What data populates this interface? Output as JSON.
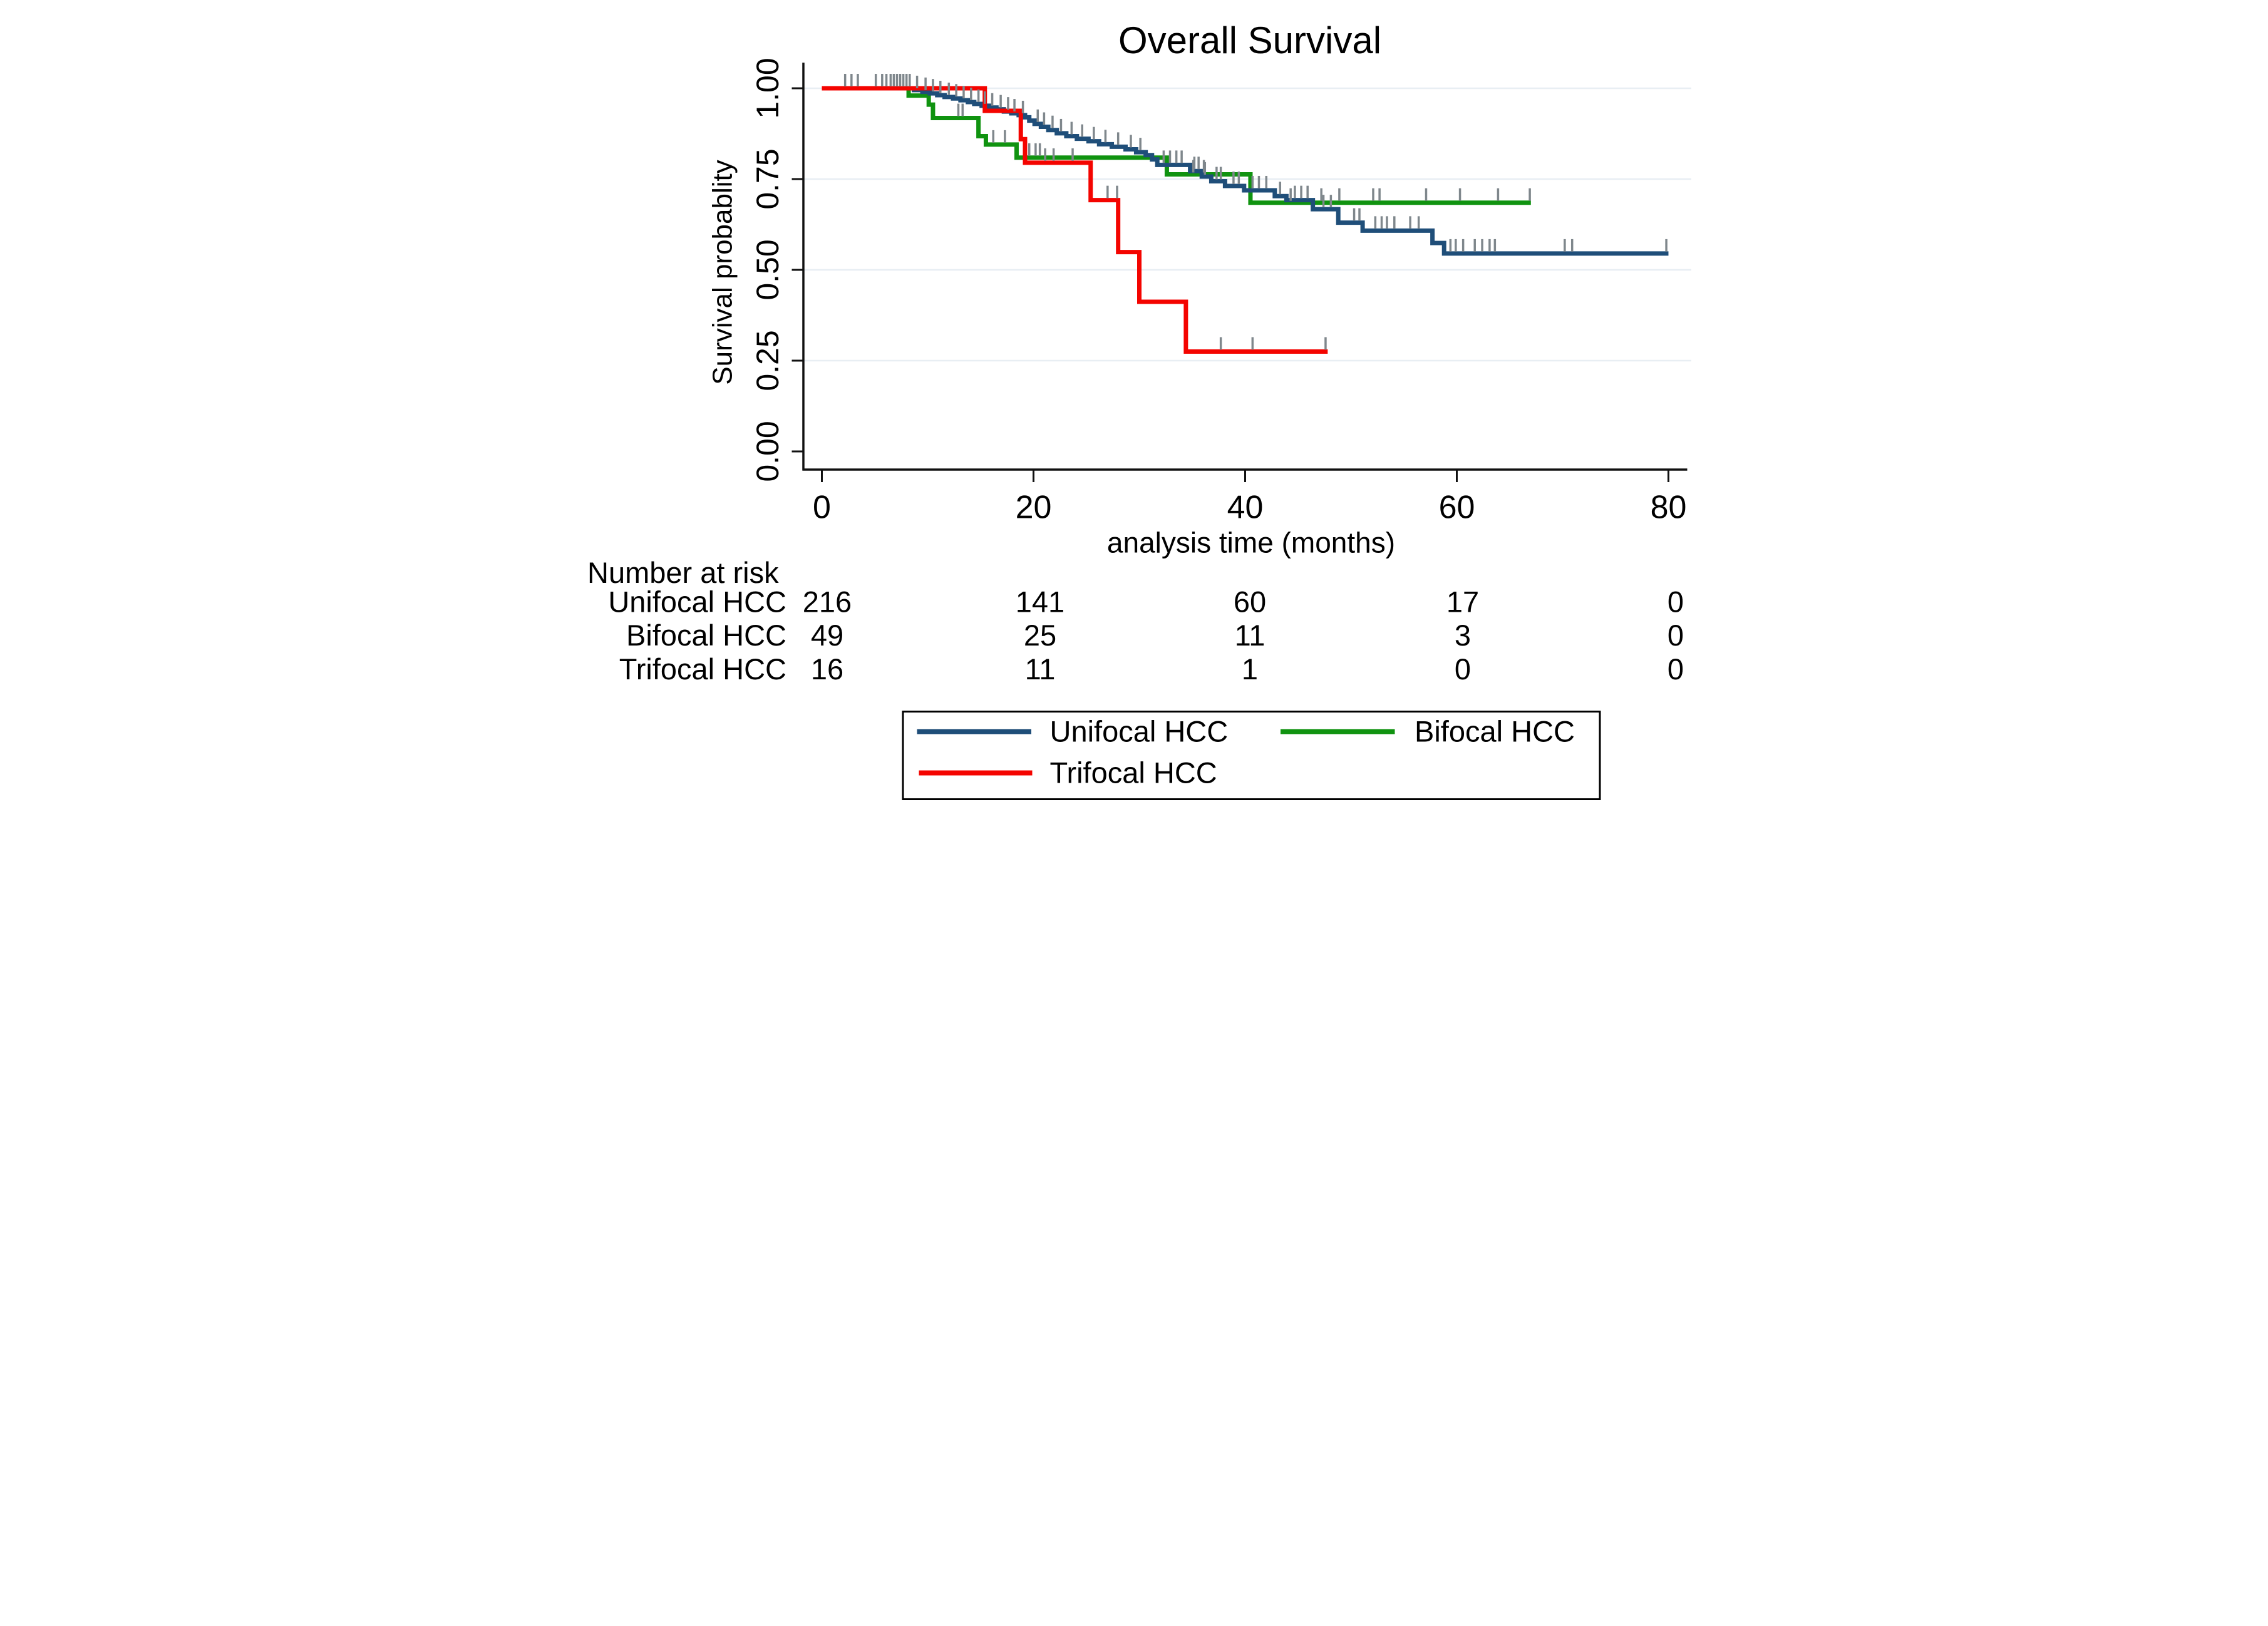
{
  "title": "Overall Survival",
  "title_color": "#243a6b",
  "colors": {
    "unifocal": "#1f4e79",
    "bifocal": "#109310",
    "trifocal": "#f40400",
    "censor": "#7f878c",
    "grid": "#e8eef3",
    "axis": "#111111",
    "text": "#000000",
    "legend_border": "#000000",
    "background": "#ffffff"
  },
  "chart_data": {
    "type": "line",
    "subtype": "kaplan-meier-step",
    "title": "Overall Survival",
    "xlabel": "analysis time (months)",
    "ylabel": "Survival probablity",
    "xlim": [
      0,
      80
    ],
    "ylim": [
      0,
      1
    ],
    "x_ticks": [
      0,
      20,
      40,
      60,
      80
    ],
    "y_ticks": [
      0,
      0.25,
      0.5,
      0.75,
      1
    ],
    "grid": true,
    "legend_position": "bottom",
    "series": [
      {
        "name": "Unifocal HCC",
        "color_key": "unifocal",
        "end_month": 80,
        "steps": [
          [
            0,
            1
          ],
          [
            8.7,
            0.995
          ],
          [
            9.5,
            0.99
          ],
          [
            10.2,
            0.986
          ],
          [
            10.9,
            0.981
          ],
          [
            11.6,
            0.976
          ],
          [
            12.4,
            0.972
          ],
          [
            13.1,
            0.967
          ],
          [
            13.8,
            0.962
          ],
          [
            14.4,
            0.957
          ],
          [
            15.1,
            0.952
          ],
          [
            15.8,
            0.947
          ],
          [
            16.5,
            0.942
          ],
          [
            17.2,
            0.936
          ],
          [
            17.9,
            0.931
          ],
          [
            18.6,
            0.926
          ],
          [
            19.2,
            0.92
          ],
          [
            19.6,
            0.911
          ],
          [
            20.1,
            0.902
          ],
          [
            20.7,
            0.894
          ],
          [
            21.4,
            0.885
          ],
          [
            22.2,
            0.876
          ],
          [
            23.1,
            0.868
          ],
          [
            24.1,
            0.861
          ],
          [
            25.2,
            0.854
          ],
          [
            26.2,
            0.846
          ],
          [
            27.4,
            0.839
          ],
          [
            28.7,
            0.832
          ],
          [
            29.7,
            0.824
          ],
          [
            30.6,
            0.816
          ],
          [
            31.2,
            0.804
          ],
          [
            31.7,
            0.789
          ],
          [
            34.8,
            0.772
          ],
          [
            35.9,
            0.757
          ],
          [
            36.8,
            0.744
          ],
          [
            38.1,
            0.731
          ],
          [
            39.9,
            0.719
          ],
          [
            42.8,
            0.703
          ],
          [
            43.9,
            0.692
          ],
          [
            46.4,
            0.667
          ],
          [
            48.8,
            0.63
          ],
          [
            51.1,
            0.608
          ],
          [
            57.7,
            0.574
          ],
          [
            58.8,
            0.545
          ]
        ],
        "censor_marks": [
          [
            2.2,
            1
          ],
          [
            2.8,
            1
          ],
          [
            3.4,
            1
          ],
          [
            5.1,
            1
          ],
          [
            5.7,
            1
          ],
          [
            6.1,
            1
          ],
          [
            6.5,
            1
          ],
          [
            6.8,
            1
          ],
          [
            7.1,
            1
          ],
          [
            7.4,
            1
          ],
          [
            7.7,
            1
          ],
          [
            8.0,
            1
          ],
          [
            8.3,
            1
          ],
          [
            9.0,
            0.995
          ],
          [
            9.8,
            0.99
          ],
          [
            10.5,
            0.986
          ],
          [
            11.2,
            0.981
          ],
          [
            12.0,
            0.976
          ],
          [
            12.7,
            0.972
          ],
          [
            13.4,
            0.967
          ],
          [
            14.1,
            0.962
          ],
          [
            14.8,
            0.957
          ],
          [
            15.4,
            0.952
          ],
          [
            16.1,
            0.947
          ],
          [
            16.9,
            0.942
          ],
          [
            17.6,
            0.936
          ],
          [
            18.2,
            0.931
          ],
          [
            19.0,
            0.926
          ],
          [
            20.4,
            0.902
          ],
          [
            21.0,
            0.894
          ],
          [
            21.8,
            0.885
          ],
          [
            22.6,
            0.876
          ],
          [
            23.6,
            0.868
          ],
          [
            24.6,
            0.861
          ],
          [
            25.7,
            0.854
          ],
          [
            26.8,
            0.846
          ],
          [
            28.0,
            0.839
          ],
          [
            29.2,
            0.832
          ],
          [
            30.1,
            0.824
          ],
          [
            32.3,
            0.789
          ],
          [
            32.9,
            0.789
          ],
          [
            33.5,
            0.789
          ],
          [
            34.0,
            0.789
          ],
          [
            35.2,
            0.772
          ],
          [
            35.6,
            0.772
          ],
          [
            36.2,
            0.757
          ],
          [
            37.3,
            0.744
          ],
          [
            37.7,
            0.744
          ],
          [
            38.9,
            0.731
          ],
          [
            39.4,
            0.731
          ],
          [
            40.7,
            0.719
          ],
          [
            41.3,
            0.719
          ],
          [
            42.0,
            0.719
          ],
          [
            43.3,
            0.703
          ],
          [
            44.7,
            0.692
          ],
          [
            45.3,
            0.692
          ],
          [
            45.9,
            0.692
          ],
          [
            47.4,
            0.667
          ],
          [
            48.1,
            0.667
          ],
          [
            50.3,
            0.63
          ],
          [
            50.8,
            0.63
          ],
          [
            52.3,
            0.608
          ],
          [
            52.9,
            0.608
          ],
          [
            53.4,
            0.608
          ],
          [
            54.1,
            0.608
          ],
          [
            55.6,
            0.608
          ],
          [
            56.4,
            0.608
          ],
          [
            59.4,
            0.545
          ],
          [
            59.9,
            0.545
          ],
          [
            60.6,
            0.545
          ],
          [
            61.7,
            0.545
          ],
          [
            62.4,
            0.545
          ],
          [
            63.1,
            0.545
          ],
          [
            63.6,
            0.545
          ],
          [
            70.2,
            0.545
          ],
          [
            70.9,
            0.545
          ],
          [
            79.8,
            0.545
          ]
        ]
      },
      {
        "name": "Bifocal HCC",
        "color_key": "bifocal",
        "end_month": 67,
        "steps": [
          [
            0,
            1
          ],
          [
            8.2,
            0.98
          ],
          [
            10.1,
            0.955
          ],
          [
            10.5,
            0.918
          ],
          [
            14.8,
            0.868
          ],
          [
            15.5,
            0.845
          ],
          [
            18.4,
            0.809
          ],
          [
            32.6,
            0.763
          ],
          [
            40.5,
            0.685
          ]
        ],
        "censor_marks": [
          [
            12.9,
            0.918
          ],
          [
            13.3,
            0.918
          ],
          [
            16.2,
            0.845
          ],
          [
            17.3,
            0.845
          ],
          [
            19.6,
            0.809
          ],
          [
            20.2,
            0.809
          ],
          [
            20.6,
            0.809
          ],
          [
            35.1,
            0.763
          ],
          [
            36.1,
            0.763
          ],
          [
            44.3,
            0.685
          ],
          [
            47.2,
            0.685
          ],
          [
            48.9,
            0.685
          ],
          [
            52.1,
            0.685
          ],
          [
            52.7,
            0.685
          ],
          [
            57.1,
            0.685
          ],
          [
            60.3,
            0.685
          ],
          [
            63.9,
            0.685
          ],
          [
            66.9,
            0.685
          ]
        ]
      },
      {
        "name": "Trifocal HCC",
        "color_key": "trifocal",
        "end_month": 47.8,
        "steps": [
          [
            0,
            1
          ],
          [
            15.4,
            0.938
          ],
          [
            18.8,
            0.86
          ],
          [
            19.2,
            0.795
          ],
          [
            25.4,
            0.692
          ],
          [
            28.0,
            0.549
          ],
          [
            30.0,
            0.412
          ],
          [
            34.4,
            0.275
          ]
        ],
        "censor_marks": [
          [
            21.1,
            0.795
          ],
          [
            21.9,
            0.795
          ],
          [
            23.7,
            0.795
          ],
          [
            27.0,
            0.692
          ],
          [
            27.9,
            0.692
          ],
          [
            37.7,
            0.275
          ],
          [
            40.7,
            0.275
          ],
          [
            47.6,
            0.275
          ]
        ]
      }
    ],
    "risk_table": {
      "header": "Number at risk",
      "time_points": [
        0,
        20,
        40,
        60,
        80
      ],
      "rows": [
        {
          "label": "Unifocal HCC",
          "values": [
            "216",
            "141",
            "60",
            "17",
            "0"
          ]
        },
        {
          "label": "Bifocal HCC",
          "values": [
            "49",
            "25",
            "11",
            "3",
            "0"
          ]
        },
        {
          "label": "Trifocal HCC",
          "values": [
            "16",
            "11",
            "1",
            "0",
            "0"
          ]
        }
      ]
    },
    "legend": [
      {
        "label": "Unifocal HCC",
        "color_key": "unifocal"
      },
      {
        "label": "Bifocal HCC",
        "color_key": "bifocal"
      },
      {
        "label": "Trifocal HCC",
        "color_key": "trifocal"
      }
    ]
  }
}
